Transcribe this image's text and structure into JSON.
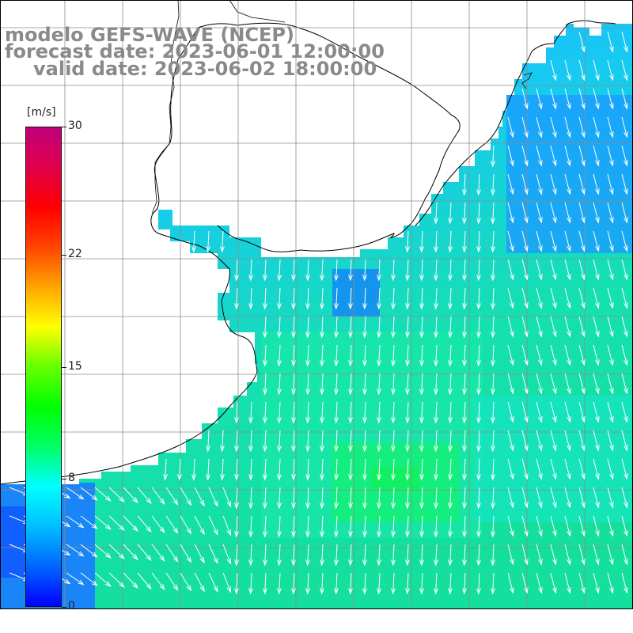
{
  "title": {
    "line1": "modelo GEFS-WAVE (NCEP)",
    "line2": "forecast date: 2023-06-01 12:00:00",
    "line3": "valid date: 2023-06-02 18:00:00"
  },
  "legend": {
    "units": "[m/s]",
    "ticks": [
      "30",
      "22",
      "15",
      "8",
      "0"
    ],
    "tick_values": [
      30,
      22,
      15,
      8,
      0
    ],
    "range": [
      0,
      30
    ],
    "colors": [
      "#0000ff",
      "#0066ff",
      "#00bfff",
      "#00ffff",
      "#00ff66",
      "#00ff00",
      "#66ff00",
      "#ffff00",
      "#ffa500",
      "#ff4400",
      "#ff0000",
      "#e0004a",
      "#c0007a"
    ]
  },
  "map": {
    "wind_speed_range_shown": [
      4,
      12
    ],
    "dominant_direction": "southward",
    "land_color": "#ffffff",
    "coastline_color": "#000000",
    "gridline_color": "#999999"
  }
}
